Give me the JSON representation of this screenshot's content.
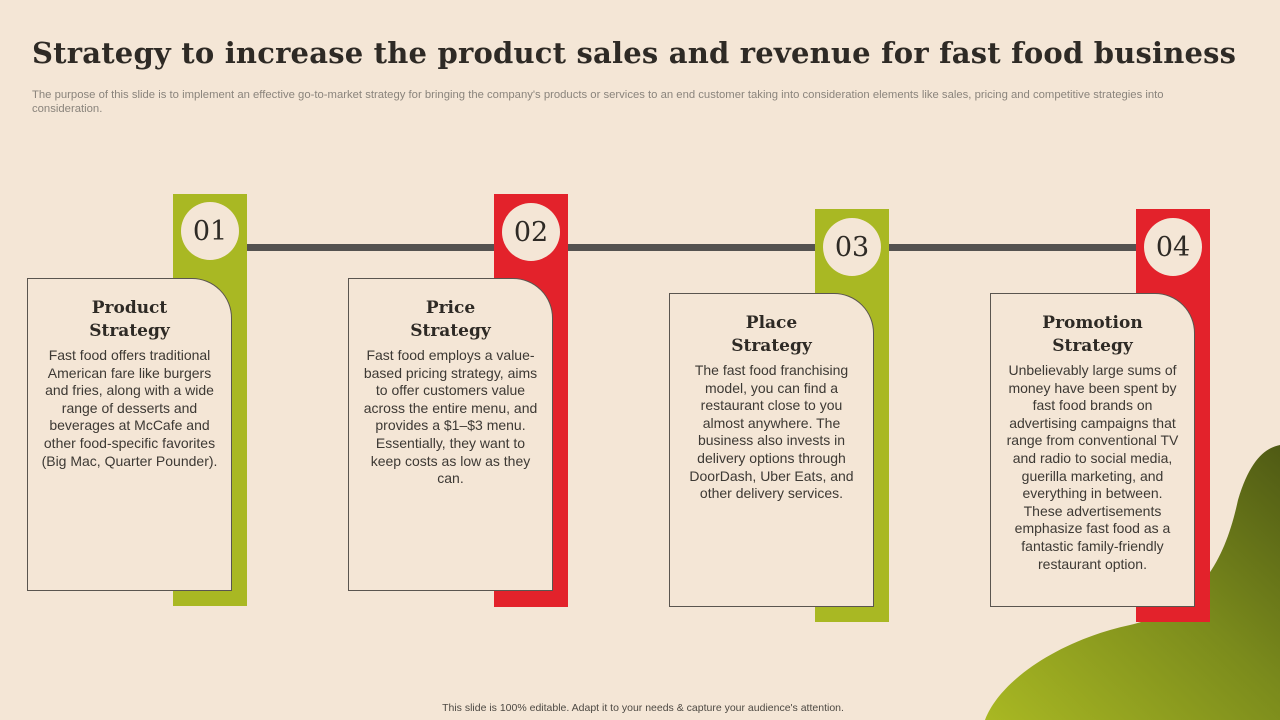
{
  "title": "Strategy to increase the product sales and revenue for fast food business",
  "subtitle": "The purpose of this slide is to implement an effective go-to-market strategy for bringing the company's products or services to an end customer taking into consideration elements like sales, pricing and competitive strategies into consideration.",
  "steps": [
    {
      "number": "01",
      "title_line1": "Product",
      "title_line2": "Strategy",
      "body": "Fast food offers traditional American fare like burgers and fries, along with a wide range of desserts and beverages at McCafe and other food-specific favorites (Big Mac, Quarter Pounder).",
      "color": "#a9b823"
    },
    {
      "number": "02",
      "title_line1": "Price",
      "title_line2": "Strategy",
      "body": "Fast food employs a value-based pricing strategy, aims to offer customers value across the entire menu, and provides a $1–$3 menu. Essentially, they want to keep costs as low as they can.",
      "color": "#e3222b"
    },
    {
      "number": "03",
      "title_line1": "Place",
      "title_line2": "Strategy",
      "body": "The fast food franchising model, you can find a restaurant close to you almost anywhere. The business also invests in delivery options through DoorDash, Uber Eats, and other delivery services.",
      "color": "#a9b823"
    },
    {
      "number": "04",
      "title_line1": "Promotion",
      "title_line2": "Strategy",
      "body": "Unbelievably large sums of money have been spent by fast food brands on advertising campaigns that range from conventional TV and radio to social media, guerilla marketing, and everything in between. These advertisements emphasize fast food as a fantastic family-friendly restaurant option.",
      "color": "#e3222b"
    }
  ],
  "footer": "This slide is 100% editable.  Adapt it to your needs & capture your audience's attention."
}
